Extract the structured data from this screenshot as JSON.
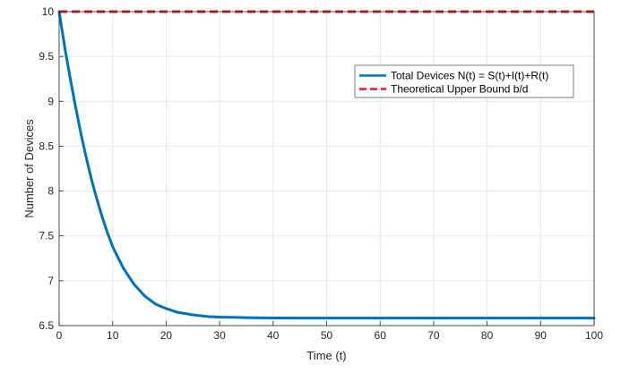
{
  "chart_data": {
    "type": "line",
    "title": "",
    "xlabel": "Time (t)",
    "ylabel": "Number of Devices",
    "xlim": [
      0,
      100
    ],
    "ylim": [
      6.5,
      10
    ],
    "x_ticks": [
      0,
      10,
      20,
      30,
      40,
      50,
      60,
      70,
      80,
      90,
      100
    ],
    "y_ticks": [
      6.5,
      7,
      7.5,
      8,
      8.5,
      9,
      9.5,
      10
    ],
    "x_tick_labels": [
      "0",
      "10",
      "20",
      "30",
      "40",
      "50",
      "60",
      "70",
      "80",
      "90",
      "100"
    ],
    "y_tick_labels": [
      "6.5",
      "7",
      "7.5",
      "8",
      "8.5",
      "9",
      "9.5",
      "10"
    ],
    "grid": true,
    "legend_position": "top-right",
    "series": [
      {
        "name": "Total Devices N(t) = S(t)+I(t)+R(t)",
        "color": "#0072BD",
        "style": "solid",
        "x": [
          0,
          1,
          2,
          3,
          4,
          5,
          6,
          7,
          8,
          9,
          10,
          12,
          14,
          16,
          18,
          20,
          22,
          25,
          28,
          30,
          35,
          40,
          50,
          60,
          70,
          80,
          90,
          100
        ],
        "y": [
          10.0,
          9.62,
          9.28,
          8.96,
          8.66,
          8.39,
          8.14,
          7.92,
          7.72,
          7.54,
          7.38,
          7.14,
          6.96,
          6.83,
          6.74,
          6.69,
          6.65,
          6.62,
          6.6,
          6.595,
          6.588,
          6.585,
          6.583,
          6.583,
          6.583,
          6.583,
          6.583,
          6.583
        ]
      },
      {
        "name": "Theoretical Upper Bound b/d",
        "color": "#E41A1C",
        "style": "dashed",
        "x": [
          0,
          100
        ],
        "y": [
          10,
          10
        ]
      }
    ]
  }
}
